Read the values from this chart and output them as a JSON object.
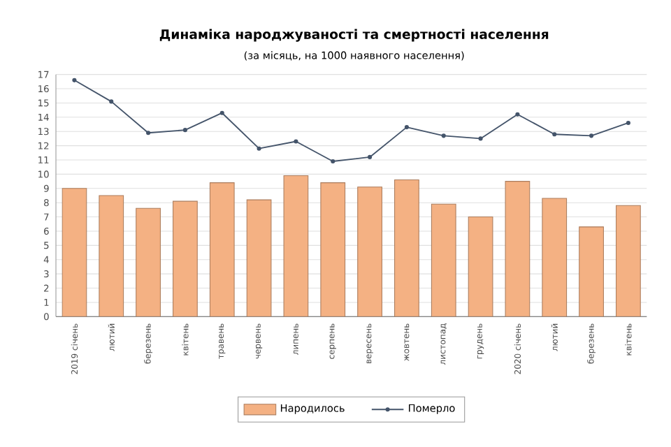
{
  "chart_data": {
    "type": "bar",
    "title": "Динаміка народжуваності та смертності населення",
    "subtitle": "(за місяць, на 1000 наявного населення)",
    "categories": [
      "2019  січень",
      "лютий",
      "березень",
      "квітень",
      "травень",
      "червень",
      "липень",
      "серпень",
      "вересень",
      "жовтень",
      "листопад",
      "грудень",
      "2020  січень",
      "лютий",
      "березень",
      "квітень"
    ],
    "series": [
      {
        "name": "Народилось",
        "color": "#f4b183",
        "values": [
          9.0,
          8.5,
          7.6,
          8.1,
          9.4,
          8.2,
          9.9,
          9.4,
          9.1,
          9.6,
          7.9,
          7.0,
          9.5,
          8.3,
          6.3,
          7.8
        ]
      },
      {
        "name": "Померло",
        "type": "line",
        "color": "#44546a",
        "marker": "circle",
        "values": [
          16.6,
          15.1,
          12.9,
          13.1,
          14.3,
          11.8,
          12.3,
          10.9,
          11.2,
          13.3,
          12.7,
          12.5,
          14.2,
          12.8,
          12.7,
          13.6
        ]
      }
    ],
    "ylim": [
      0,
      17
    ],
    "yticks": [
      0,
      1,
      2,
      3,
      4,
      5,
      6,
      7,
      8,
      9,
      10,
      11,
      12,
      13,
      14,
      15,
      16,
      17
    ],
    "grid": "y",
    "legend": "bottom"
  }
}
